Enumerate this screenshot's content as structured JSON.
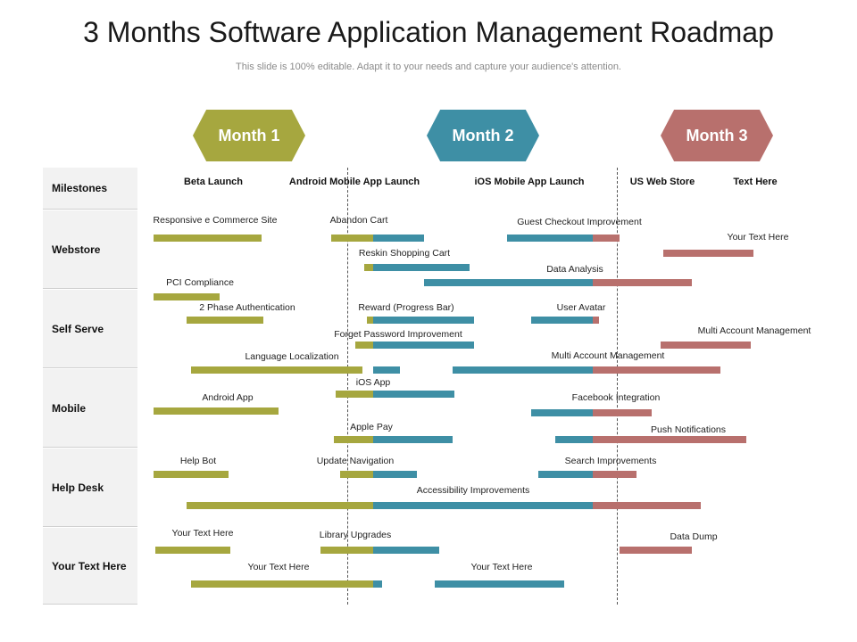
{
  "title": "3 Months Software Application Management Roadmap",
  "subtitle": "This slide is 100% editable. Adapt it to your needs and capture your audience's attention.",
  "months": [
    "Month 1",
    "Month 2",
    "Month 3"
  ],
  "categories": [
    "Milestones",
    "Webstore",
    "Self Serve",
    "Mobile",
    "Help Desk",
    "Your Text Here"
  ],
  "milestones": [
    "Beta Launch",
    "Android Mobile App Launch",
    "iOS Mobile App Launch",
    "US Web Store",
    "Text Here"
  ],
  "colors": {
    "month1": "#a6a73f",
    "month2": "#3e8fa5",
    "month3": "#b8706d"
  },
  "tasks": [
    {
      "label": "Responsive e Commerce Site",
      "category": "Webstore",
      "segments": [
        {
          "month": 1,
          "start": 0.0,
          "end": 0.49
        }
      ]
    },
    {
      "label": "Abandon Cart",
      "category": "Webstore",
      "segments": [
        {
          "month": 1,
          "start": 0.81,
          "end": 1.0
        },
        {
          "month": 2,
          "start": 0.0,
          "end": 0.23
        }
      ]
    },
    {
      "label": "Guest Checkout Improvement",
      "category": "Webstore",
      "segments": [
        {
          "month": 2,
          "start": 0.61,
          "end": 1.0
        },
        {
          "month": 3,
          "start": 0.0,
          "end": 0.12
        }
      ]
    },
    {
      "label": "Your Text Here",
      "category": "Webstore",
      "segments": [
        {
          "month": 3,
          "start": 0.32,
          "end": 0.73
        }
      ]
    },
    {
      "label": "Reskin Shopping Cart",
      "category": "Webstore",
      "segments": [
        {
          "month": 1,
          "start": 0.96,
          "end": 1.0
        },
        {
          "month": 2,
          "start": 0.0,
          "end": 0.44
        }
      ]
    },
    {
      "label": "Data Analysis",
      "category": "Webstore",
      "segments": [
        {
          "month": 2,
          "start": 0.23,
          "end": 1.0
        },
        {
          "month": 3,
          "start": 0.0,
          "end": 0.45
        }
      ]
    },
    {
      "label": "PCI Compliance",
      "category": "Self Serve",
      "segments": [
        {
          "month": 1,
          "start": 0.0,
          "end": 0.3
        }
      ]
    },
    {
      "label": "2 Phase Authentication",
      "category": "Self Serve",
      "segments": [
        {
          "month": 1,
          "start": 0.15,
          "end": 0.5
        }
      ]
    },
    {
      "label": "Reward (Progress Bar)",
      "category": "Self Serve",
      "segments": [
        {
          "month": 1,
          "start": 0.97,
          "end": 1.0
        },
        {
          "month": 2,
          "start": 0.0,
          "end": 0.46
        }
      ]
    },
    {
      "label": "User Avatar",
      "category": "Self Serve",
      "segments": [
        {
          "month": 2,
          "start": 0.72,
          "end": 1.0
        },
        {
          "month": 3,
          "start": 0.0,
          "end": 0.03
        }
      ]
    },
    {
      "label": "Multi Account Management",
      "category": "Self Serve",
      "segments": [
        {
          "month": 3,
          "start": 0.31,
          "end": 0.72
        }
      ]
    },
    {
      "label": "Forget Password Improvement",
      "category": "Self Serve",
      "segments": [
        {
          "month": 1,
          "start": 0.92,
          "end": 1.0
        },
        {
          "month": 2,
          "start": 0.0,
          "end": 0.46
        }
      ]
    },
    {
      "label": "Language Localization",
      "category": "Mobile",
      "segments": [
        {
          "month": 1,
          "start": 0.17,
          "end": 0.95
        },
        {
          "month": 2,
          "start": 0.0,
          "end": 0.12
        }
      ]
    },
    {
      "label": "Multi Account Management",
      "category": "Mobile",
      "segments": [
        {
          "month": 2,
          "start": 0.36,
          "end": 1.0
        },
        {
          "month": 3,
          "start": 0.0,
          "end": 0.58
        }
      ]
    },
    {
      "label": "iOS App",
      "category": "Mobile",
      "segments": [
        {
          "month": 1,
          "start": 0.83,
          "end": 1.0
        },
        {
          "month": 2,
          "start": 0.0,
          "end": 0.37
        }
      ]
    },
    {
      "label": "Android App",
      "category": "Mobile",
      "segments": [
        {
          "month": 1,
          "start": 0.0,
          "end": 0.57
        }
      ]
    },
    {
      "label": "Facebook Integration",
      "category": "Mobile",
      "segments": [
        {
          "month": 2,
          "start": 0.72,
          "end": 1.0
        },
        {
          "month": 3,
          "start": 0.0,
          "end": 0.27
        }
      ]
    },
    {
      "label": "Apple Pay",
      "category": "Mobile",
      "segments": [
        {
          "month": 1,
          "start": 0.82,
          "end": 1.0
        },
        {
          "month": 2,
          "start": 0.0,
          "end": 0.36
        }
      ]
    },
    {
      "label": "Push Notifications",
      "category": "Mobile",
      "segments": [
        {
          "month": 2,
          "start": 0.83,
          "end": 1.0
        },
        {
          "month": 3,
          "start": 0.0,
          "end": 0.7
        }
      ]
    },
    {
      "label": "Help Bot",
      "category": "Help Desk",
      "segments": [
        {
          "month": 1,
          "start": 0.0,
          "end": 0.34
        }
      ]
    },
    {
      "label": "Update Navigation",
      "category": "Help Desk",
      "segments": [
        {
          "month": 1,
          "start": 0.85,
          "end": 1.0
        },
        {
          "month": 2,
          "start": 0.0,
          "end": 0.2
        }
      ]
    },
    {
      "label": "Search Improvements",
      "category": "Help Desk",
      "segments": [
        {
          "month": 2,
          "start": 0.75,
          "end": 1.0
        },
        {
          "month": 3,
          "start": 0.0,
          "end": 0.2
        }
      ]
    },
    {
      "label": "Accessibility Improvements",
      "category": "Help Desk",
      "segments": [
        {
          "month": 1,
          "start": 0.15,
          "end": 1.0
        },
        {
          "month": 3,
          "start": 0.0,
          "end": 0.49
        },
        {
          "month": 2,
          "start": 0.0,
          "end": 1.0
        }
      ]
    },
    {
      "label": "Your Text Here",
      "category": "Your Text Here",
      "segments": [
        {
          "month": 1,
          "start": 0.01,
          "end": 0.35
        }
      ]
    },
    {
      "label": "Library Upgrades",
      "category": "Your Text Here",
      "segments": [
        {
          "month": 1,
          "start": 0.76,
          "end": 1.0
        },
        {
          "month": 2,
          "start": 0.0,
          "end": 0.3
        }
      ]
    },
    {
      "label": "Data Dump",
      "category": "Your Text Here",
      "segments": [
        {
          "month": 3,
          "start": 0.12,
          "end": 0.45
        }
      ]
    },
    {
      "label": "Your Text Here",
      "category": "Your Text Here",
      "segments": [
        {
          "month": 1,
          "start": 0.17,
          "end": 1.0
        },
        {
          "month": 2,
          "start": 0.0,
          "end": 0.04
        }
      ]
    },
    {
      "label": "Your Text Here",
      "category": "Your Text Here",
      "segments": [
        {
          "month": 2,
          "start": 0.28,
          "end": 0.87
        }
      ]
    }
  ]
}
